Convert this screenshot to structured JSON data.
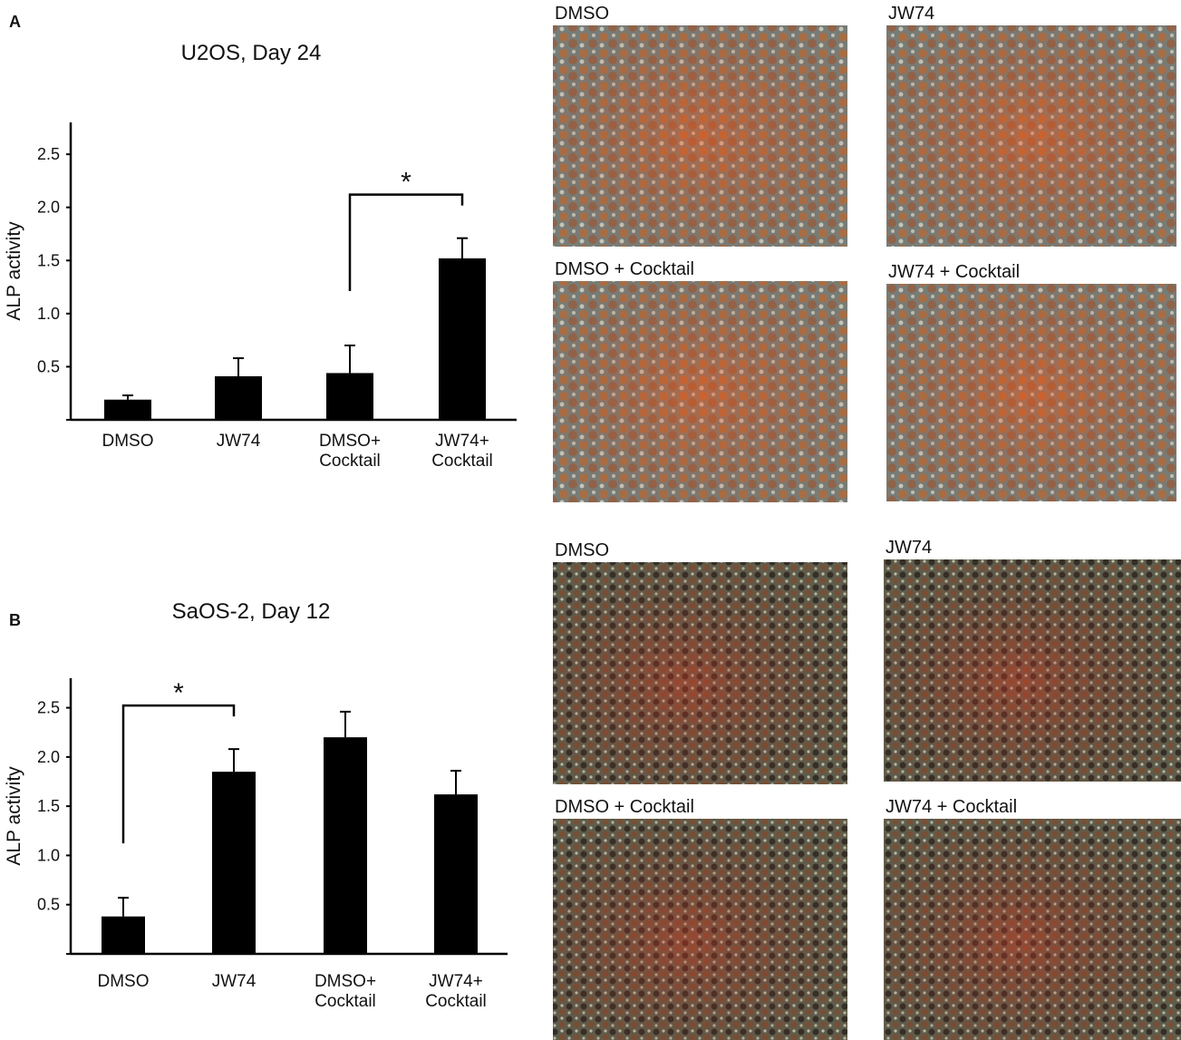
{
  "panels": [
    "A",
    "B"
  ],
  "chart_data": [
    {
      "type": "bar",
      "title": "U2OS, Day 24",
      "ylabel": "ALP activity",
      "categories": [
        "DMSO",
        "JW74",
        "DMSO+ Cocktail",
        "JW74+ Cocktail"
      ],
      "values": [
        0.19,
        0.41,
        0.44,
        1.52
      ],
      "errors": [
        0.04,
        0.17,
        0.26,
        0.19
      ],
      "color": "#000000",
      "ylim": [
        0,
        2.8
      ],
      "yticks": [
        0.5,
        {
          "value": 1,
          "label": "1.0"
        },
        1.5,
        {
          "value": 2,
          "label": "2.0"
        },
        2.5
      ],
      "significance": {
        "text": "*",
        "between": [
          2,
          3
        ]
      }
    },
    {
      "type": "bar",
      "title": "SaOS-2, Day 12",
      "ylabel": "ALP activity",
      "categories": [
        "DMSO",
        "JW74",
        "DMSO+ Cocktail",
        "JW74+ Cocktail"
      ],
      "values": [
        0.38,
        1.85,
        2.2,
        1.62
      ],
      "errors": [
        0.19,
        0.23,
        0.26,
        0.24
      ],
      "color": "#000000",
      "ylim": [
        0,
        2.8
      ],
      "yticks": [
        0.5,
        {
          "value": 1,
          "label": "1.0"
        },
        1.5,
        {
          "value": 2,
          "label": "2.0"
        },
        2.5
      ],
      "significance": {
        "text": "*",
        "between": [
          0,
          1
        ]
      }
    }
  ],
  "images": [
    [
      "DMSO",
      "JW74",
      "DMSO + Cocktail",
      "JW74 + Cocktail"
    ],
    [
      "DMSO",
      "JW74",
      "DMSO + Cocktail",
      "JW74 + Cocktail"
    ]
  ]
}
